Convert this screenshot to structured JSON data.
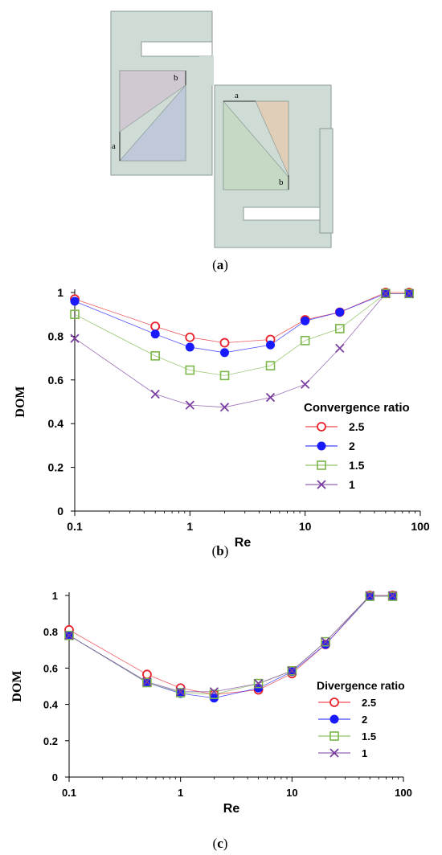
{
  "panel_a": {
    "caption_open": "(",
    "caption_letter": "a",
    "caption_close": ")",
    "label_a_left": "a",
    "label_b_left": "b",
    "label_a_right": "a",
    "label_b_right": "b",
    "colors": {
      "body": "#cfdcd6",
      "body_stroke": "#8a9a94",
      "tri_upper_left": "#d0c9d2",
      "tri_lower_left": "#bfc9da",
      "tri_left_right": "#c6d9c5",
      "tri_right_right": "#e0ceb8"
    }
  },
  "chart_data": [
    {
      "panel": "b",
      "type": "line",
      "caption_open": "(",
      "caption_letter": "b",
      "caption_close": ")",
      "xlabel": "Re",
      "ylabel": "DOM",
      "x_scale": "log",
      "xlim": [
        0.1,
        100
      ],
      "ylim": [
        0,
        1
      ],
      "x_ticks": [
        0.1,
        1,
        10,
        100
      ],
      "x_tick_labels": [
        "0.1",
        "1",
        "10",
        "100"
      ],
      "y_ticks": [
        0,
        0.2,
        0.4,
        0.6,
        0.8,
        1
      ],
      "y_tick_labels": [
        "0",
        "0.2",
        "0.4",
        "0.6",
        "0.8",
        "1"
      ],
      "legend_title": "Convergence ratio",
      "legend_position": "lower-right",
      "grid": false,
      "series": [
        {
          "name": "2.5",
          "marker": "open-circle",
          "color": "#e8202a",
          "x": [
            0.1,
            0.5,
            1,
            2,
            5,
            10,
            20,
            50,
            80
          ],
          "y": [
            0.97,
            0.845,
            0.795,
            0.77,
            0.785,
            0.875,
            0.91,
            1.0,
            1.0
          ]
        },
        {
          "name": "2",
          "marker": "filled-circle",
          "color": "#1a1aff",
          "x": [
            0.1,
            0.5,
            1,
            2,
            5,
            10,
            20,
            50,
            80
          ],
          "y": [
            0.96,
            0.81,
            0.75,
            0.725,
            0.76,
            0.87,
            0.91,
            0.995,
            0.995
          ]
        },
        {
          "name": "1.5",
          "marker": "open-square",
          "color": "#7ab648",
          "x": [
            0.1,
            0.5,
            1,
            2,
            5,
            10,
            20,
            50,
            80
          ],
          "y": [
            0.9,
            0.71,
            0.645,
            0.62,
            0.665,
            0.78,
            0.835,
            0.995,
            0.995
          ]
        },
        {
          "name": "1",
          "marker": "cross",
          "color": "#7a3fa0",
          "x": [
            0.1,
            0.5,
            1,
            2,
            5,
            10,
            20,
            50,
            80
          ],
          "y": [
            0.79,
            0.535,
            0.485,
            0.475,
            0.52,
            0.58,
            0.745,
            0.995,
            0.995
          ]
        }
      ]
    },
    {
      "panel": "c",
      "type": "line",
      "caption_open": "(",
      "caption_letter": "c",
      "caption_close": ")",
      "xlabel": "Re",
      "ylabel": "DOM",
      "x_scale": "log",
      "xlim": [
        0.1,
        100
      ],
      "ylim": [
        0,
        1
      ],
      "x_ticks": [
        0.1,
        1,
        10,
        100
      ],
      "x_tick_labels": [
        "0.1",
        "1",
        "10",
        "100"
      ],
      "y_ticks": [
        0,
        0.2,
        0.4,
        0.6,
        0.8,
        1
      ],
      "y_tick_labels": [
        "0",
        "0.2",
        "0.4",
        "0.6",
        "0.8",
        "1"
      ],
      "legend_title": "Divergence ratio",
      "legend_position": "lower-right",
      "grid": false,
      "series": [
        {
          "name": "2.5",
          "marker": "open-circle",
          "color": "#e8202a",
          "x": [
            0.1,
            0.5,
            1,
            2,
            5,
            10,
            20,
            50,
            80
          ],
          "y": [
            0.81,
            0.565,
            0.49,
            0.455,
            0.48,
            0.57,
            0.73,
            1.0,
            1.0
          ]
        },
        {
          "name": "2",
          "marker": "filled-circle",
          "color": "#1a1aff",
          "x": [
            0.1,
            0.5,
            1,
            2,
            5,
            10,
            20,
            50,
            80
          ],
          "y": [
            0.78,
            0.52,
            0.46,
            0.435,
            0.49,
            0.58,
            0.73,
            0.995,
            0.995
          ]
        },
        {
          "name": "1.5",
          "marker": "open-square",
          "color": "#7ab648",
          "x": [
            0.1,
            0.5,
            1,
            2,
            5,
            10,
            20,
            50,
            80
          ],
          "y": [
            0.78,
            0.52,
            0.465,
            0.455,
            0.515,
            0.585,
            0.745,
            0.995,
            0.995
          ]
        },
        {
          "name": "1",
          "marker": "cross",
          "color": "#7a3fa0",
          "x": [
            0.1,
            0.5,
            1,
            2,
            5,
            10,
            20,
            50,
            80
          ],
          "y": [
            0.78,
            0.525,
            0.47,
            0.47,
            0.515,
            0.585,
            0.745,
            1.0,
            1.0
          ]
        }
      ]
    }
  ]
}
